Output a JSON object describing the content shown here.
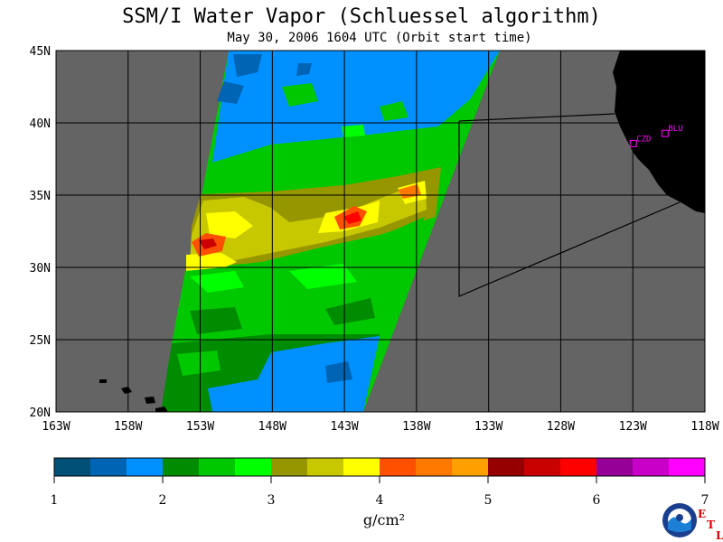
{
  "title": "SSM/I Water Vapor (Schluessel algorithm)",
  "subtitle": "May 30, 2006  1604 UTC  (Orbit start time)",
  "map": {
    "lon_range": [
      -163,
      -118
    ],
    "lat_range": [
      20,
      45
    ],
    "lat_labels": [
      "20N",
      "25N",
      "30N",
      "35N",
      "40N",
      "45N"
    ],
    "lon_labels": [
      "163W",
      "158W",
      "153W",
      "148W",
      "143W",
      "138W",
      "133W",
      "128W",
      "123W",
      "118W"
    ],
    "stations": [
      {
        "id": "CZD",
        "lon": -123.0,
        "lat": 38.6
      },
      {
        "id": "BLU",
        "lon": -120.8,
        "lat": 39.3
      }
    ],
    "colors": {
      "background": "#646464",
      "land": "#000000",
      "station": "#ff00ff",
      "grid": "#000000"
    }
  },
  "colorbar": {
    "ticks": [
      "1",
      "2",
      "3",
      "4",
      "5",
      "6",
      "7"
    ],
    "colors": [
      "#005078",
      "#0064b4",
      "#0090ff",
      "#008c00",
      "#00c800",
      "#00ff00",
      "#969600",
      "#c8c800",
      "#ffff00",
      "#ff5000",
      "#ff7800",
      "#ffa000",
      "#960000",
      "#c80000",
      "#ff0000",
      "#960096",
      "#c800c8",
      "#ff00ff"
    ],
    "unit": "g/cm²"
  },
  "logo": {
    "noaa_text": "NOAA",
    "etl_letters": [
      "E",
      "T",
      "L"
    ]
  }
}
